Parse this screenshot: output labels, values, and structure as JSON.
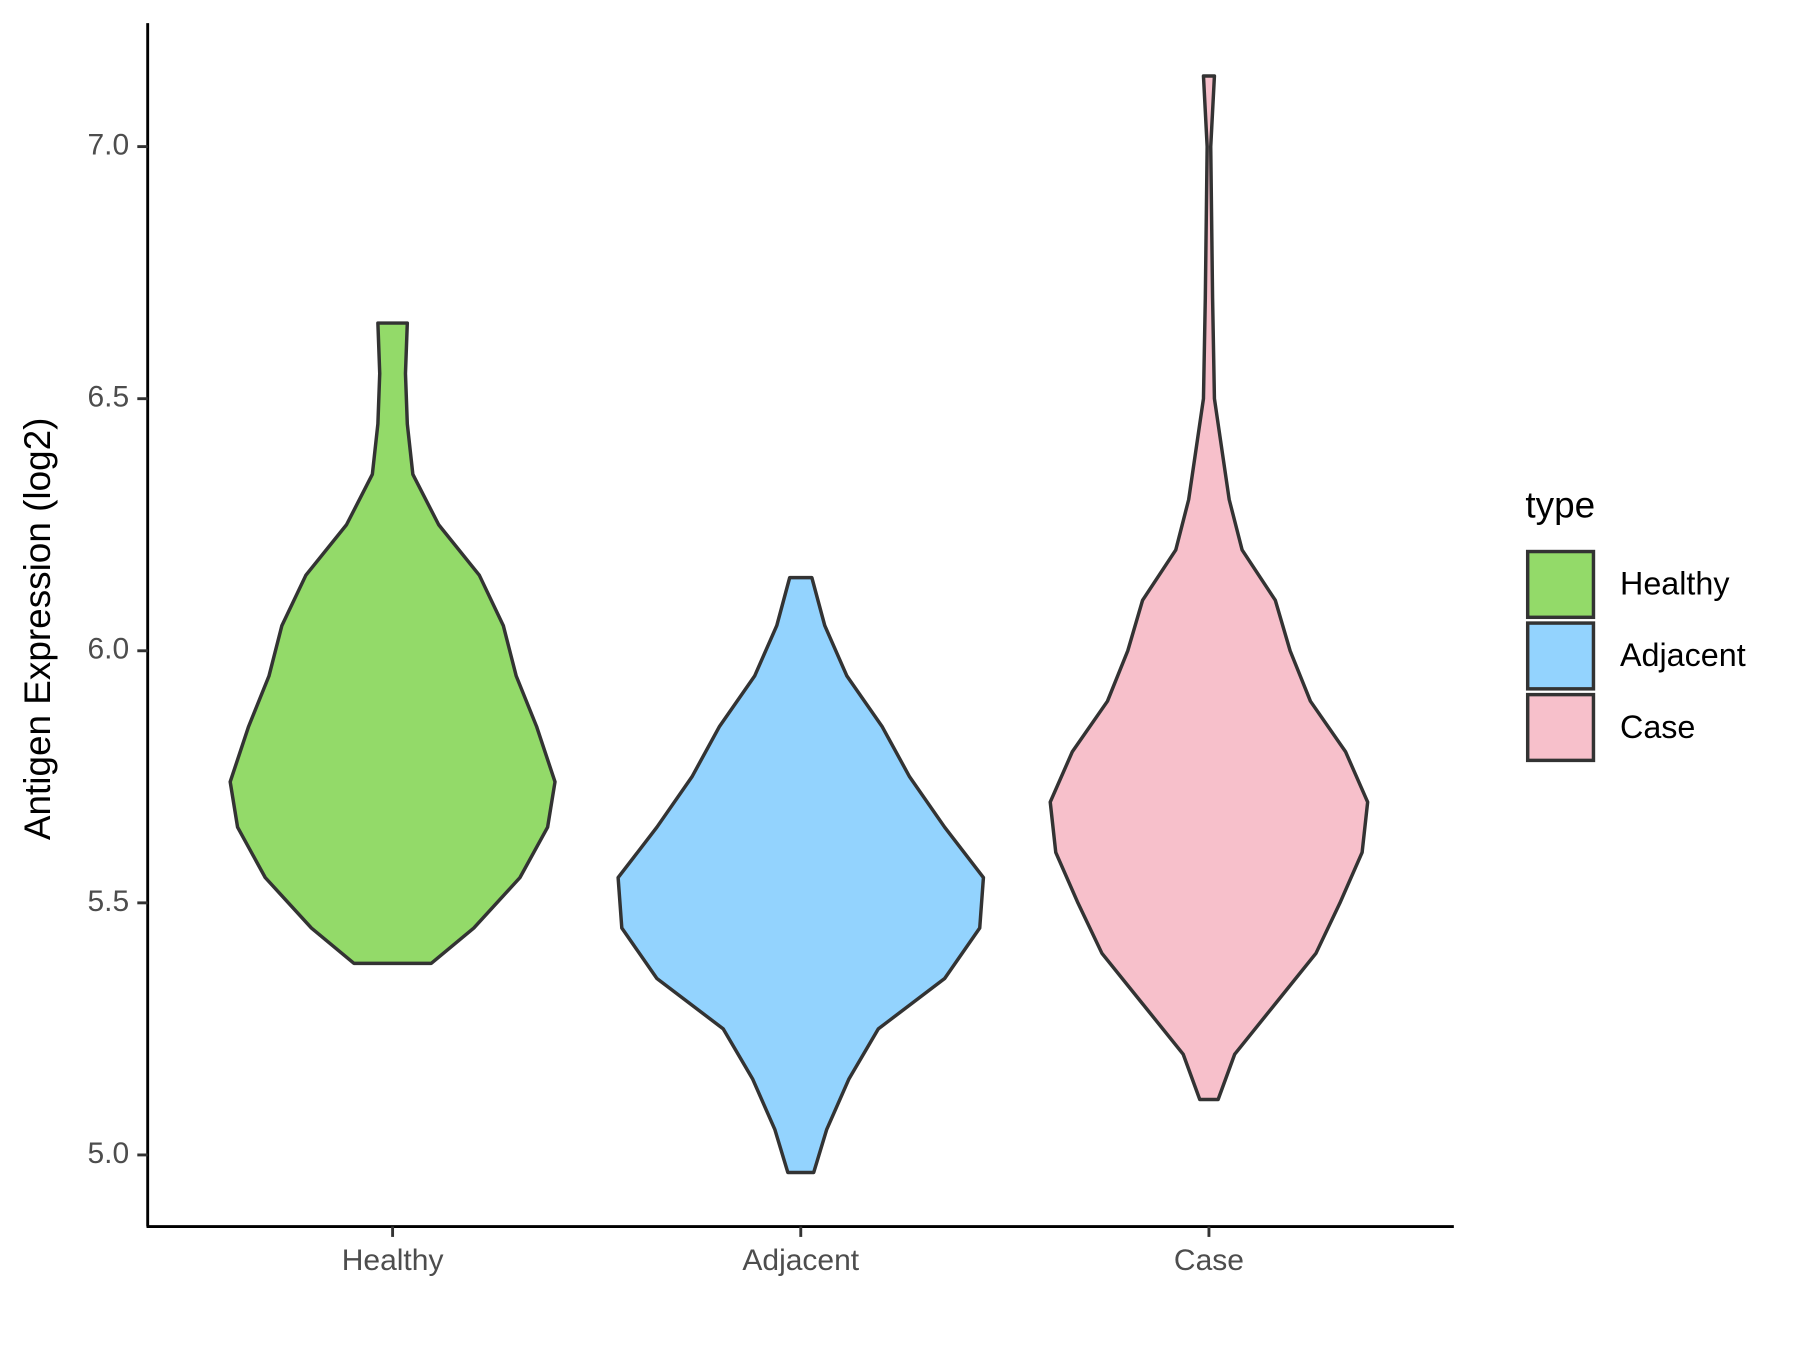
{
  "chart_data": {
    "type": "violin",
    "y_label": "Antigen Expression (log2)",
    "legend_title": "type",
    "categories": [
      "Healthy",
      "Adjacent",
      "Case"
    ],
    "ylim": [
      4.858,
      7.245
    ],
    "yticks": [
      {
        "value": 5,
        "label": "5.0"
      },
      {
        "value": 5.5,
        "label": "5.5"
      },
      {
        "value": 6,
        "label": "6.0"
      },
      {
        "value": 6.5,
        "label": "6.5"
      },
      {
        "value": 7,
        "label": "7.0"
      }
    ],
    "outline_color": "#333333",
    "series": [
      {
        "name": "Healthy",
        "color": "#93da69",
        "y": [
          5.38,
          5.45,
          5.55,
          5.65,
          5.74,
          5.85,
          5.95,
          6.05,
          6.15,
          6.25,
          6.35,
          6.45,
          6.55,
          6.65
        ],
        "density": [
          0.21,
          0.44,
          0.69,
          0.84,
          0.88,
          0.78,
          0.67,
          0.6,
          0.47,
          0.25,
          0.11,
          0.08,
          0.07,
          0.08
        ]
      },
      {
        "name": "Adjacent",
        "color": "#93d3fe",
        "y": [
          4.965,
          5.05,
          5.15,
          5.25,
          5.35,
          5.45,
          5.55,
          5.65,
          5.75,
          5.85,
          5.95,
          6.05,
          6.145
        ],
        "density": [
          0.07,
          0.14,
          0.26,
          0.42,
          0.78,
          0.97,
          0.99,
          0.78,
          0.59,
          0.44,
          0.25,
          0.13,
          0.06
        ]
      },
      {
        "name": "Case",
        "color": "#f7c0cb",
        "y": [
          5.11,
          5.2,
          5.3,
          5.4,
          5.5,
          5.6,
          5.7,
          5.8,
          5.9,
          6.0,
          6.1,
          6.2,
          6.3,
          6.5,
          6.7,
          7.0,
          7.14
        ],
        "density": [
          0.05,
          0.14,
          0.36,
          0.58,
          0.71,
          0.83,
          0.86,
          0.74,
          0.55,
          0.44,
          0.36,
          0.18,
          0.11,
          0.03,
          0.02,
          0.01,
          0.03
        ]
      }
    ]
  }
}
